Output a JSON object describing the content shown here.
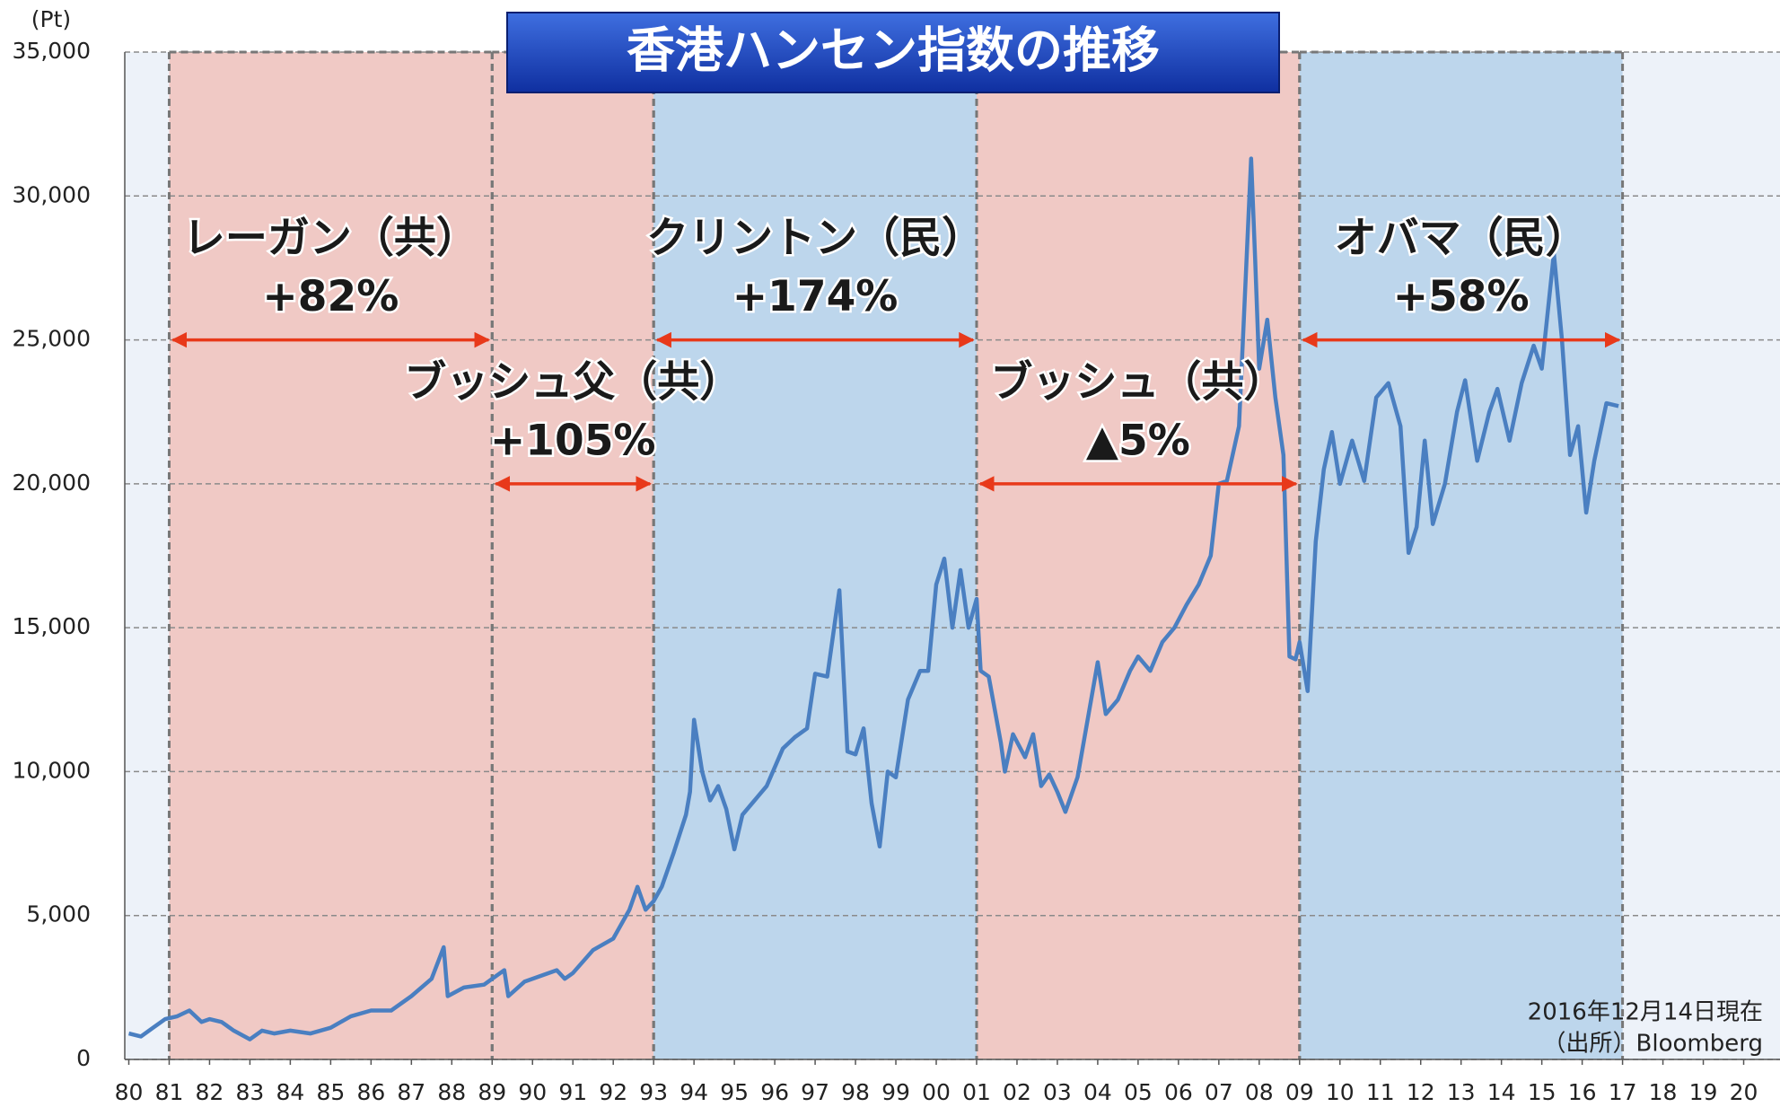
{
  "chart_data": {
    "type": "line",
    "title": "香港ハンセン指数の推移",
    "y_label": "(Pt)",
    "notes": [
      "2016年12月14日現在",
      "（出所）Bloomberg"
    ],
    "xlim": [
      1979.9,
      2020.9
    ],
    "xticks": [
      {
        "value": 1980,
        "label": "80"
      },
      {
        "value": 1981,
        "label": "81"
      },
      {
        "value": 1982,
        "label": "82"
      },
      {
        "value": 1983,
        "label": "83"
      },
      {
        "value": 1984,
        "label": "84"
      },
      {
        "value": 1985,
        "label": "85"
      },
      {
        "value": 1986,
        "label": "86"
      },
      {
        "value": 1987,
        "label": "87"
      },
      {
        "value": 1988,
        "label": "88"
      },
      {
        "value": 1989,
        "label": "89"
      },
      {
        "value": 1990,
        "label": "90"
      },
      {
        "value": 1991,
        "label": "91"
      },
      {
        "value": 1992,
        "label": "92"
      },
      {
        "value": 1993,
        "label": "93"
      },
      {
        "value": 1994,
        "label": "94"
      },
      {
        "value": 1995,
        "label": "95"
      },
      {
        "value": 1996,
        "label": "96"
      },
      {
        "value": 1997,
        "label": "97"
      },
      {
        "value": 1998,
        "label": "98"
      },
      {
        "value": 1999,
        "label": "99"
      },
      {
        "value": 2000,
        "label": "00"
      },
      {
        "value": 2001,
        "label": "01"
      },
      {
        "value": 2002,
        "label": "02"
      },
      {
        "value": 2003,
        "label": "03"
      },
      {
        "value": 2004,
        "label": "04"
      },
      {
        "value": 2005,
        "label": "05"
      },
      {
        "value": 2006,
        "label": "06"
      },
      {
        "value": 2007,
        "label": "07"
      },
      {
        "value": 2008,
        "label": "08"
      },
      {
        "value": 2009,
        "label": "09"
      },
      {
        "value": 2010,
        "label": "10"
      },
      {
        "value": 2011,
        "label": "11"
      },
      {
        "value": 2012,
        "label": "12"
      },
      {
        "value": 2013,
        "label": "13"
      },
      {
        "value": 2014,
        "label": "14"
      },
      {
        "value": 2015,
        "label": "15"
      },
      {
        "value": 2016,
        "label": "16"
      },
      {
        "value": 2017,
        "label": "17"
      },
      {
        "value": 2018,
        "label": "18"
      },
      {
        "value": 2019,
        "label": "19"
      },
      {
        "value": 2020,
        "label": "20"
      }
    ],
    "ylim": [
      0,
      35000
    ],
    "yticks": [
      0,
      {
        "value": 5000,
        "label": "5,000"
      },
      {
        "value": 10000,
        "label": "10,000"
      },
      {
        "value": 15000,
        "label": "15,000"
      },
      {
        "value": 20000,
        "label": "20,000"
      },
      {
        "value": 25000,
        "label": "25,000"
      },
      {
        "value": 30000,
        "label": "30,000"
      },
      {
        "value": 35000,
        "label": "35,000"
      }
    ],
    "grid": true,
    "periods": [
      {
        "label": "レーガン（共）",
        "change": "+82%",
        "start": 1981,
        "end": 1989,
        "arrow_y": 25000,
        "color": "#f0c9c5"
      },
      {
        "label": "ブッシュ父（共）",
        "change": "+105%",
        "start": 1989,
        "end": 1993,
        "arrow_y": 20000,
        "color": "#f0c9c5"
      },
      {
        "label": "クリントン（民）",
        "change": "+174%",
        "start": 1993,
        "end": 2001,
        "arrow_y": 25000,
        "color": "#bdd6ec"
      },
      {
        "label": "ブッシュ（共）",
        "change": "▲5%",
        "start": 2001,
        "end": 2009,
        "arrow_y": 20000,
        "color": "#f0c9c5"
      },
      {
        "label": "オバマ（民）",
        "change": "+58%",
        "start": 2009,
        "end": 2017,
        "arrow_y": 25000,
        "color": "#bdd6ec"
      }
    ],
    "series": [
      {
        "color": "#4a7fc1",
        "x": [
          1980.0,
          1980.3,
          1980.6,
          1980.9,
          1981.2,
          1981.5,
          1981.8,
          1982.0,
          1982.3,
          1982.6,
          1983.0,
          1983.3,
          1983.6,
          1984.0,
          1984.5,
          1985.0,
          1985.5,
          1986.0,
          1986.5,
          1987.0,
          1987.5,
          1987.8,
          1987.9,
          1988.3,
          1988.8,
          1989.0,
          1989.3,
          1989.4,
          1989.8,
          1990.2,
          1990.6,
          1990.8,
          1991.0,
          1991.5,
          1992.0,
          1992.4,
          1992.6,
          1992.8,
          1993.0,
          1993.2,
          1993.5,
          1993.8,
          1993.9,
          1994.0,
          1994.2,
          1994.4,
          1994.6,
          1994.8,
          1995.0,
          1995.2,
          1995.5,
          1995.8,
          1996.2,
          1996.5,
          1996.8,
          1997.0,
          1997.3,
          1997.6,
          1997.8,
          1998.0,
          1998.2,
          1998.4,
          1998.6,
          1998.8,
          1999.0,
          1999.3,
          1999.6,
          1999.8,
          2000.0,
          2000.2,
          2000.4,
          2000.6,
          2000.8,
          2001.0,
          2001.1,
          2001.3,
          2001.6,
          2001.7,
          2001.9,
          2002.2,
          2002.4,
          2002.6,
          2002.8,
          2003.0,
          2003.2,
          2003.5,
          2003.8,
          2004.0,
          2004.2,
          2004.5,
          2004.8,
          2005.0,
          2005.3,
          2005.6,
          2005.9,
          2006.2,
          2006.5,
          2006.8,
          2007.0,
          2007.2,
          2007.5,
          2007.8,
          2007.9,
          2008.0,
          2008.2,
          2008.4,
          2008.6,
          2008.75,
          2008.9,
          2009.0,
          2009.2,
          2009.4,
          2009.6,
          2009.8,
          2010.0,
          2010.3,
          2010.6,
          2010.9,
          2011.2,
          2011.5,
          2011.7,
          2011.9,
          2012.1,
          2012.3,
          2012.6,
          2012.9,
          2013.1,
          2013.4,
          2013.7,
          2013.9,
          2014.2,
          2014.5,
          2014.8,
          2015.0,
          2015.3,
          2015.5,
          2015.7,
          2015.9,
          2016.1,
          2016.3,
          2016.6,
          2016.9
        ],
        "values": [
          900,
          800,
          1100,
          1400,
          1500,
          1700,
          1300,
          1400,
          1300,
          1000,
          700,
          1000,
          900,
          1000,
          900,
          1100,
          1500,
          1700,
          1700,
          2200,
          2800,
          3900,
          2200,
          2500,
          2600,
          2800,
          3100,
          2200,
          2700,
          2900,
          3100,
          2800,
          3000,
          3800,
          4200,
          5200,
          6000,
          5200,
          5500,
          6000,
          7200,
          8500,
          9300,
          11800,
          10000,
          9000,
          9500,
          8700,
          7300,
          8500,
          9000,
          9500,
          10800,
          11200,
          11500,
          13400,
          13300,
          16300,
          10700,
          10600,
          11500,
          8900,
          7400,
          10000,
          9800,
          12500,
          13500,
          13500,
          16500,
          17400,
          15000,
          17000,
          15000,
          16000,
          13500,
          13300,
          11000,
          10000,
          11300,
          10500,
          11300,
          9500,
          9900,
          9300,
          8600,
          9800,
          12200,
          13800,
          12000,
          12500,
          13500,
          14000,
          13500,
          14500,
          15000,
          15800,
          16500,
          17500,
          20000,
          20100,
          22000,
          31300,
          27800,
          24000,
          25700,
          23000,
          21000,
          14000,
          13900,
          14500,
          12800,
          18000,
          20500,
          21800,
          20000,
          21500,
          20100,
          23000,
          23500,
          22000,
          17600,
          18500,
          21500,
          18600,
          20000,
          22500,
          23600,
          20800,
          22500,
          23300,
          21500,
          23500,
          24800,
          24000,
          28000,
          25000,
          21000,
          22000,
          19000,
          20800,
          22800,
          22700
        ]
      }
    ]
  }
}
